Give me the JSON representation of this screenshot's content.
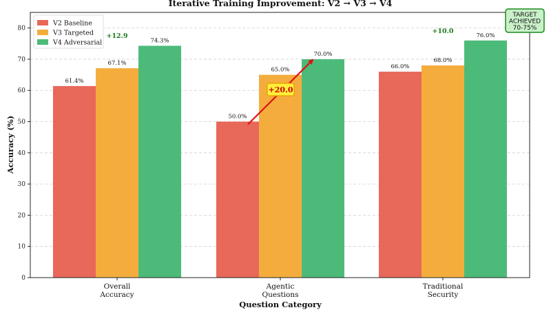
{
  "chart_data": {
    "type": "bar",
    "title": "Iterative Training Improvement: V2 → V3 → V4",
    "xlabel": "Question Category",
    "ylabel": "Accuracy (%)",
    "ylim": [
      0,
      85
    ],
    "yticks": [
      0,
      10,
      20,
      30,
      40,
      50,
      60,
      70,
      80
    ],
    "grid": true,
    "legend_position": "top-left",
    "categories": [
      [
        "Overall",
        "Accuracy"
      ],
      [
        "Agentic",
        "Questions"
      ],
      [
        "Traditional",
        "Security"
      ]
    ],
    "series": [
      {
        "name": "V2 Baseline",
        "color": "#e8685a",
        "values": [
          61.4,
          50.0,
          66.0
        ],
        "labels": [
          "61.4%",
          "50.0%",
          "66.0%"
        ]
      },
      {
        "name": "V3 Targeted",
        "color": "#f4ad3d",
        "values": [
          67.1,
          65.0,
          68.0
        ],
        "labels": [
          "67.1%",
          "65.0%",
          "68.0%"
        ]
      },
      {
        "name": "V4 Adversarial",
        "color": "#4cbb7a",
        "values": [
          74.3,
          70.0,
          76.0
        ],
        "labels": [
          "74.3%",
          "70.0%",
          "76.0%"
        ]
      }
    ],
    "annotations": {
      "gains": [
        {
          "category": 0,
          "text": "+12.9"
        },
        {
          "category": 2,
          "text": "+10.0"
        }
      ],
      "callout": {
        "text": "+20.0",
        "category": 1,
        "from_value": 50.0,
        "to_value": 70.0
      },
      "target": {
        "lines": [
          "TARGET",
          "ACHIEVED",
          "70-75%"
        ]
      }
    }
  }
}
